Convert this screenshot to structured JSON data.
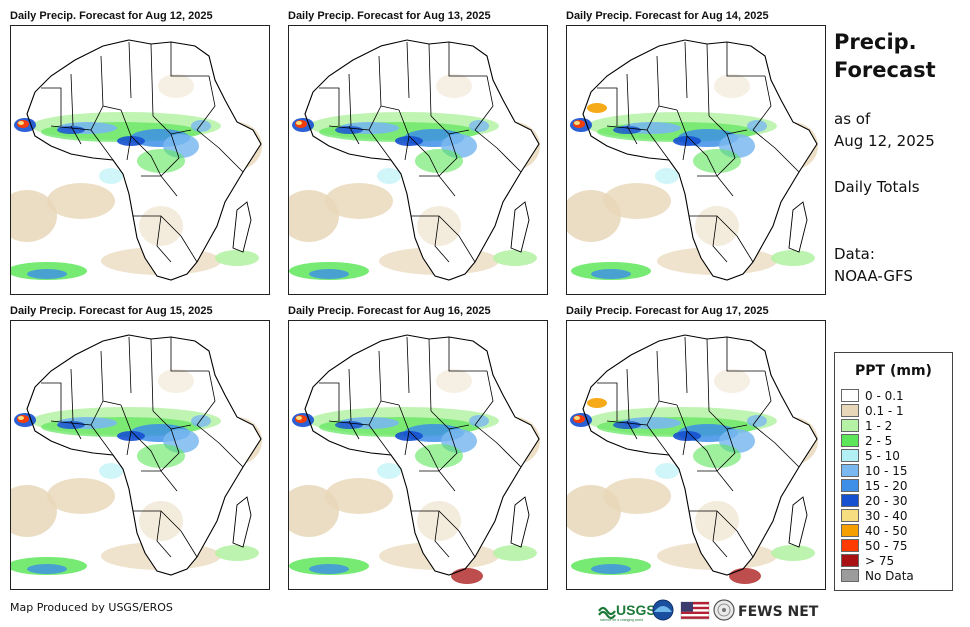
{
  "panels": [
    {
      "title": "Daily Precip. Forecast for Aug 12, 2025"
    },
    {
      "title": "Daily Precip. Forecast for Aug 13, 2025"
    },
    {
      "title": "Daily Precip. Forecast for Aug 14, 2025"
    },
    {
      "title": "Daily Precip. Forecast for Aug 15, 2025"
    },
    {
      "title": "Daily Precip. Forecast for Aug 16, 2025"
    },
    {
      "title": "Daily Precip. Forecast for Aug 17, 2025"
    }
  ],
  "sidebar": {
    "title_line1": "Precip.",
    "title_line2": "Forecast",
    "asof_line1": "as of",
    "asof_line2": "Aug 12, 2025",
    "totals": "Daily Totals",
    "data_label": "Data:",
    "data_source": "NOAA-GFS"
  },
  "legend": {
    "title": "PPT (mm)",
    "items": [
      {
        "label": "0 - 0.1",
        "color": "#ffffff"
      },
      {
        "label": "0.1 - 1",
        "color": "#e8d7b8"
      },
      {
        "label": "1 - 2",
        "color": "#b5f2a5"
      },
      {
        "label": "2 - 5",
        "color": "#5ee65a"
      },
      {
        "label": "5 - 10",
        "color": "#b3f0f5"
      },
      {
        "label": "10 - 15",
        "color": "#7ab8f0"
      },
      {
        "label": "15 - 20",
        "color": "#3d8fe8"
      },
      {
        "label": "20 - 30",
        "color": "#1550d0"
      },
      {
        "label": "30 - 40",
        "color": "#f5dd80"
      },
      {
        "label": "40 - 50",
        "color": "#f5a000"
      },
      {
        "label": "50 - 75",
        "color": "#ff3b00"
      },
      {
        "label": "> 75",
        "color": "#a81212"
      },
      {
        "label": "No Data",
        "color": "#9c9c9c"
      }
    ]
  },
  "footer": {
    "credit": "Map Produced by USGS/EROS"
  },
  "logos": {
    "usgs": "USGS",
    "usgs_tagline": "science for a changing world",
    "fewsnet": "FEWS NET"
  }
}
